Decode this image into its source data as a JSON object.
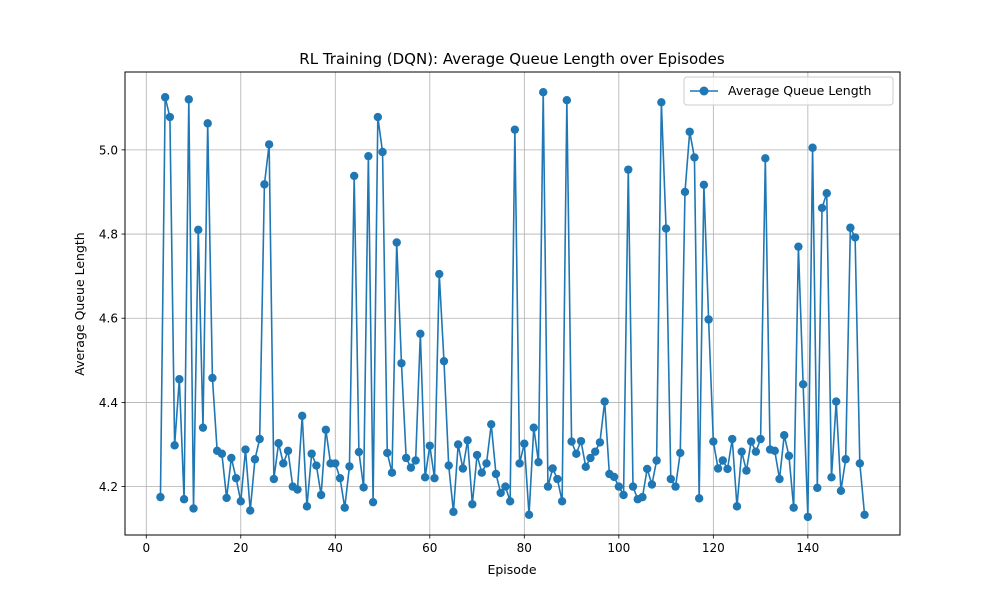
{
  "chart_data": {
    "type": "line",
    "title": "RL Training (DQN): Average Queue Length over Episodes",
    "xlabel": "Episode",
    "ylabel": "Average Queue Length",
    "xlim": [
      -4.5,
      159.5
    ],
    "ylim": [
      4.085,
      5.185
    ],
    "xticks": [
      0,
      20,
      40,
      60,
      80,
      100,
      120,
      140
    ],
    "yticks": [
      4.2,
      4.4,
      4.6,
      4.8,
      5.0
    ],
    "xtick_labels": [
      "0",
      "20",
      "40",
      "60",
      "80",
      "100",
      "120",
      "140"
    ],
    "ytick_labels": [
      "4.2",
      "4.4",
      "4.6",
      "4.8",
      "5.0"
    ],
    "grid": true,
    "legend_position": "top-right",
    "color": "#1f77b4",
    "series": [
      {
        "name": "Average Queue Length",
        "x": [
          3,
          4,
          5,
          6,
          7,
          8,
          9,
          10,
          11,
          12,
          13,
          14,
          15,
          16,
          17,
          18,
          19,
          20,
          21,
          22,
          23,
          24,
          25,
          26,
          27,
          28,
          29,
          30,
          31,
          32,
          33,
          34,
          35,
          36,
          37,
          38,
          39,
          40,
          41,
          42,
          43,
          44,
          45,
          46,
          47,
          48,
          49,
          50,
          51,
          52,
          53,
          54,
          55,
          56,
          57,
          58,
          59,
          60,
          61,
          62,
          63,
          64,
          65,
          66,
          67,
          68,
          69,
          70,
          71,
          72,
          73,
          74,
          75,
          76,
          77,
          78,
          79,
          80,
          81,
          82,
          83,
          84,
          85,
          86,
          87,
          88,
          89,
          90,
          91,
          92,
          93,
          94,
          95,
          96,
          97,
          98,
          99,
          100,
          101,
          102,
          103,
          104,
          105,
          106,
          107,
          108,
          109,
          110,
          111,
          112,
          113,
          114,
          115,
          116,
          117,
          118,
          119,
          120,
          121,
          122,
          123,
          124,
          125,
          126,
          127,
          128,
          129,
          130,
          131,
          132,
          133,
          134,
          135,
          136,
          137,
          138,
          139,
          140,
          141,
          142,
          143,
          144,
          145,
          146,
          147,
          148,
          149,
          150,
          151,
          152
        ],
        "values": [
          4.175,
          5.125,
          5.078,
          4.298,
          4.455,
          4.17,
          5.12,
          4.148,
          4.81,
          4.34,
          5.063,
          4.458,
          4.285,
          4.278,
          4.173,
          4.268,
          4.22,
          4.165,
          4.288,
          4.143,
          4.265,
          4.313,
          4.918,
          5.013,
          4.218,
          4.303,
          4.255,
          4.285,
          4.2,
          4.193,
          4.368,
          4.153,
          4.278,
          4.25,
          4.18,
          4.335,
          4.255,
          4.255,
          4.22,
          4.15,
          4.248,
          4.938,
          4.282,
          4.198,
          4.985,
          4.163,
          5.078,
          4.995,
          4.28,
          4.233,
          4.78,
          4.493,
          4.268,
          4.245,
          4.262,
          4.563,
          4.222,
          4.297,
          4.22,
          4.705,
          4.498,
          4.25,
          4.14,
          4.3,
          4.243,
          4.31,
          4.158,
          4.275,
          4.233,
          4.255,
          4.348,
          4.23,
          4.185,
          4.2,
          4.165,
          5.048,
          4.255,
          4.302,
          4.133,
          4.34,
          4.258,
          5.137,
          4.2,
          4.243,
          4.218,
          4.165,
          5.118,
          4.307,
          4.278,
          4.308,
          4.247,
          4.268,
          4.283,
          4.305,
          4.402,
          4.23,
          4.223,
          4.2,
          4.18,
          4.953,
          4.2,
          4.17,
          4.175,
          4.242,
          4.205,
          4.262,
          5.113,
          4.813,
          4.218,
          4.2,
          4.28,
          4.9,
          5.043,
          4.982,
          4.172,
          4.917,
          4.597,
          4.307,
          4.243,
          4.262,
          4.242,
          4.313,
          4.153,
          4.283,
          4.238,
          4.307,
          4.283,
          4.313,
          4.98,
          4.288,
          4.285,
          4.218,
          4.322,
          4.273,
          4.15,
          4.77,
          4.443,
          4.128,
          5.005,
          4.197,
          4.862,
          4.897,
          4.222,
          4.402,
          4.19,
          4.265,
          4.815,
          4.792,
          4.255,
          4.133
        ]
      }
    ]
  }
}
